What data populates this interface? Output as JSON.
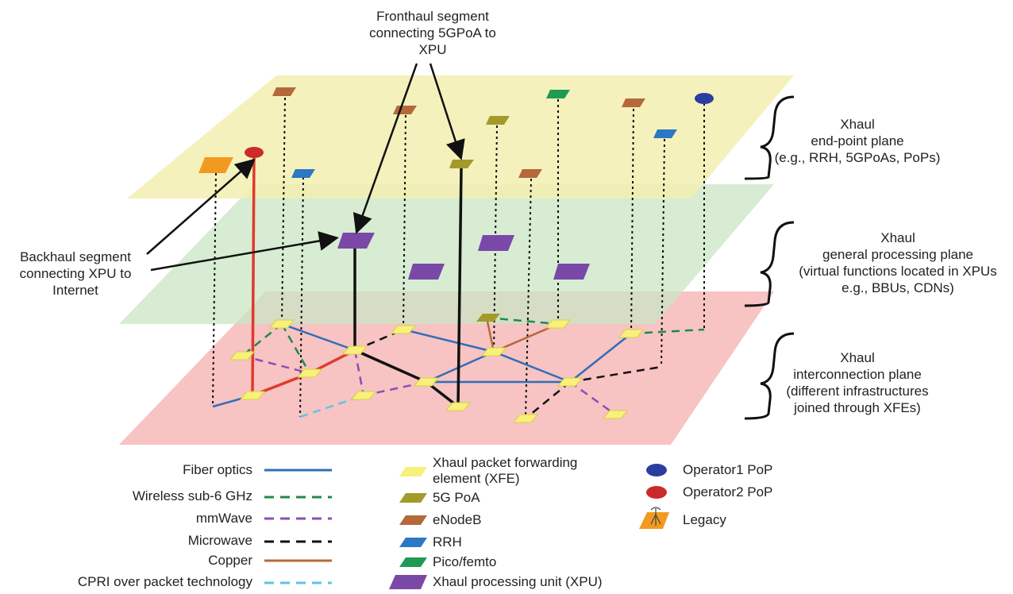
{
  "callouts": {
    "fronthaul": [
      "Fronthaul segment",
      "connecting 5GPoA to",
      "XPU"
    ],
    "backhaul": [
      "Backhaul segment",
      "connecting XPU to",
      "Internet"
    ]
  },
  "planes": {
    "endpoint": [
      "Xhaul",
      "end-point plane",
      "(e.g., RRH, 5GPoAs, PoPs)"
    ],
    "processing": [
      "Xhaul",
      "general processing plane",
      "(virtual functions located in XPUs",
      "e.g., BBUs, CDNs)"
    ],
    "interconnection": [
      "Xhaul",
      "interconnection plane",
      "(different infrastructures",
      "joined through XFEs)"
    ]
  },
  "legend": {
    "links": [
      {
        "label": "Fiber optics",
        "color": "#2f6fb8",
        "dash": "none"
      },
      {
        "label": "Wireless sub-6 GHz",
        "color": "#1f8a4c",
        "dash": "12 8"
      },
      {
        "label": "mmWave",
        "color": "#8b4fb3",
        "dash": "12 8"
      },
      {
        "label": "Microwave",
        "color": "#111111",
        "dash": "12 8"
      },
      {
        "label": "Copper",
        "color": "#b5693a",
        "dash": "none"
      },
      {
        "label": "CPRI over packet technology",
        "color": "#5ec3e6",
        "dash": "12 8"
      }
    ],
    "nodes": [
      {
        "label": "Xhaul packet forwarding",
        "label2": "element (XFE)",
        "color": "#f7f07a"
      },
      {
        "label": "5G PoA",
        "color": "#a39a2a"
      },
      {
        "label": "eNodeB",
        "color": "#b5693a"
      },
      {
        "label": "RRH",
        "color": "#2b78c4"
      },
      {
        "label": "Pico/femto",
        "color": "#1f9a55"
      },
      {
        "label": "Xhaul processing unit (XPU)",
        "color": "#7a49a8"
      }
    ],
    "pops": [
      {
        "label": "Operator1 PoP",
        "color": "#2a3da0"
      },
      {
        "label": "Operator2 PoP",
        "color": "#cc2a2a"
      },
      {
        "label": "Legacy",
        "color": "#f29a1f"
      }
    ]
  }
}
